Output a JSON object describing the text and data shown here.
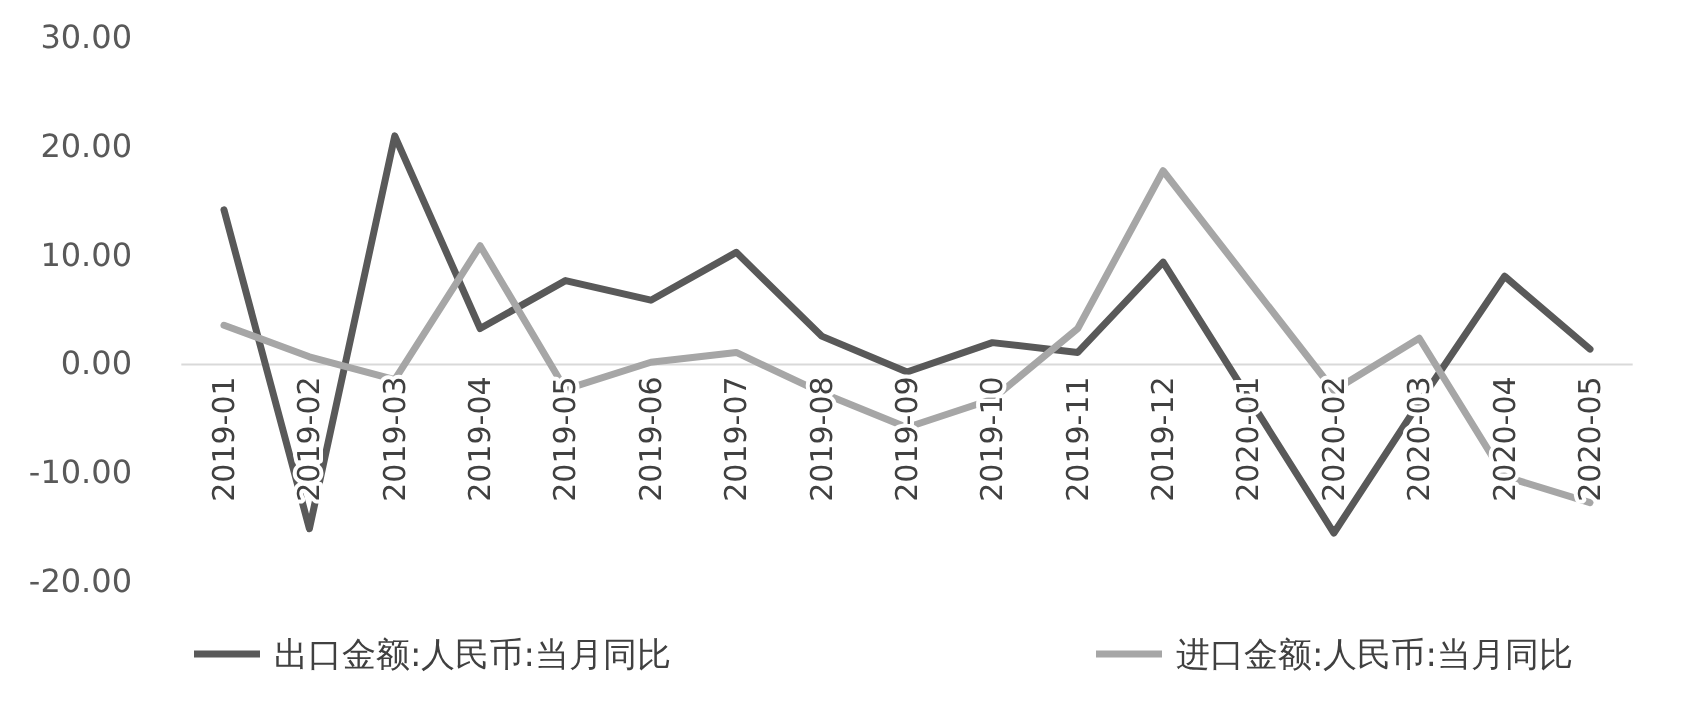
{
  "chart_data": {
    "type": "line",
    "categories": [
      "2019-01",
      "2019-02",
      "2019-03",
      "2019-04",
      "2019-05",
      "2019-06",
      "2019-07",
      "2019-08",
      "2019-09",
      "2019-10",
      "2019-11",
      "2019-12",
      "2020-01",
      "2020-02",
      "2020-03",
      "2020-04",
      "2020-05"
    ],
    "series": [
      {
        "name": "出口金额:人民币:当月同比",
        "color": "#595959",
        "values": [
          14.2,
          -15.1,
          21.0,
          3.3,
          7.7,
          5.9,
          10.3,
          2.6,
          -0.7,
          2.0,
          1.1,
          9.4,
          null,
          -15.5,
          -3.5,
          8.1,
          1.4
        ]
      },
      {
        "name": "进口金额:人民币:当月同比",
        "color": "#a6a6a6",
        "values": [
          3.6,
          0.7,
          -1.4,
          10.9,
          -2.3,
          0.2,
          1.1,
          -2.6,
          -5.8,
          -3.2,
          3.3,
          17.8,
          null,
          -2.4,
          2.4,
          -10.3,
          -12.7
        ]
      }
    ],
    "ylim": [
      -20,
      30
    ],
    "yticks": [
      {
        "value": -20,
        "label": "-20.00"
      },
      {
        "value": -10,
        "label": "-10.00"
      },
      {
        "value": 0,
        "label": "0.00"
      },
      {
        "value": 10,
        "label": "10.00"
      },
      {
        "value": 20,
        "label": "20.00"
      },
      {
        "value": 30,
        "label": "30.00"
      }
    ],
    "legend": "bottom"
  }
}
